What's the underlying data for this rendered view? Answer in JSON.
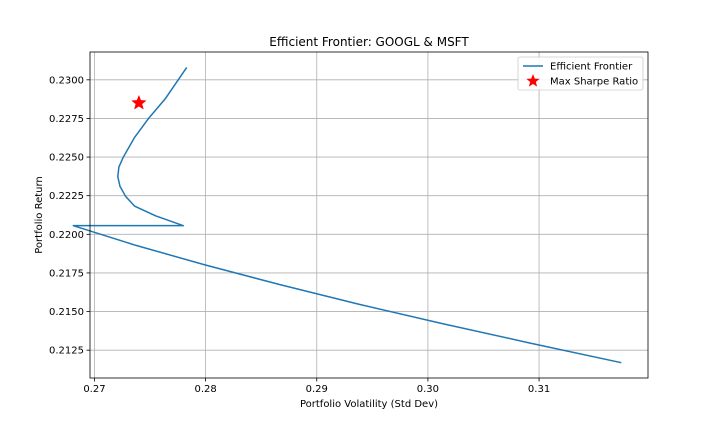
{
  "chart_data": {
    "type": "line",
    "title": "Efficient Frontier: GOOGL & MSFT",
    "xlabel": "Portfolio Volatility (Std Dev)",
    "ylabel": "Portfolio Return",
    "xlim": [
      0.2696,
      0.3198
    ],
    "ylim": [
      0.2107,
      0.2318
    ],
    "grid": true,
    "legend_position": "top-right",
    "x_ticks": [
      {
        "value": 0.27,
        "label": "0.27"
      },
      {
        "value": 0.28,
        "label": "0.28"
      },
      {
        "value": 0.29,
        "label": "0.29"
      },
      {
        "value": 0.3,
        "label": "0.30"
      },
      {
        "value": 0.31,
        "label": "0.31"
      }
    ],
    "y_ticks": [
      {
        "value": 0.2125,
        "label": "0.2125"
      },
      {
        "value": 0.215,
        "label": "0.2150"
      },
      {
        "value": 0.2175,
        "label": "0.2175"
      },
      {
        "value": 0.22,
        "label": "0.2200"
      },
      {
        "value": 0.2225,
        "label": "0.2225"
      },
      {
        "value": 0.225,
        "label": "0.2250"
      },
      {
        "value": 0.2275,
        "label": "0.2275"
      },
      {
        "value": 0.23,
        "label": "0.2300"
      }
    ],
    "series": [
      {
        "name": "Efficient Frontier",
        "kind": "line",
        "color": "#1f77b4",
        "points": [
          [
            0.3174,
            0.21169
          ],
          [
            0.3092,
            0.21296
          ],
          [
            0.3013,
            0.21422
          ],
          [
            0.2937,
            0.21549
          ],
          [
            0.2866,
            0.21676
          ],
          [
            0.2799,
            0.21803
          ],
          [
            0.2737,
            0.21929
          ],
          [
            0.2681,
            0.22056
          ],
          [
            0.278,
            0.22056
          ],
          [
            0.2755,
            0.2212
          ],
          [
            0.2736,
            0.22183
          ],
          [
            0.2728,
            0.22246
          ],
          [
            0.2723,
            0.2231
          ],
          [
            0.2721,
            0.22373
          ],
          [
            0.2722,
            0.22436
          ],
          [
            0.2726,
            0.225
          ],
          [
            0.2736,
            0.22626
          ],
          [
            0.2749,
            0.22753
          ],
          [
            0.2764,
            0.2288
          ],
          [
            0.2783,
            0.2308
          ]
        ]
      },
      {
        "name": "Max Sharpe Ratio",
        "kind": "marker",
        "marker": "star",
        "color": "#ff0000",
        "points": [
          [
            0.274,
            0.2285
          ]
        ]
      }
    ]
  }
}
